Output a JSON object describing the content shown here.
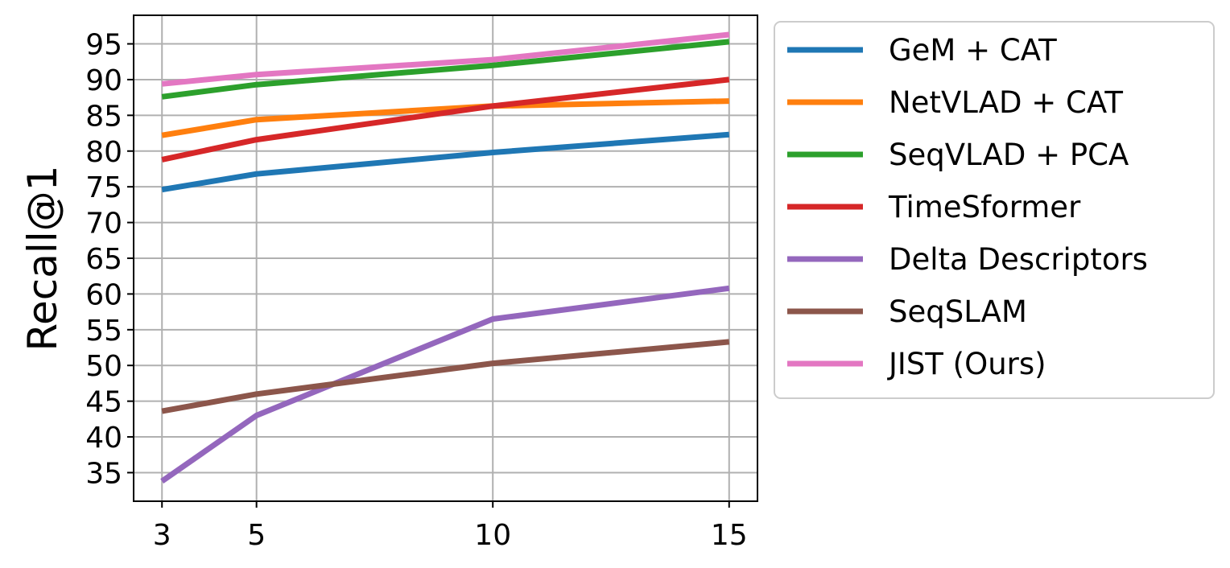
{
  "chart_data": {
    "type": "line",
    "title": "",
    "xlabel": "",
    "ylabel": "Recall@1",
    "x": [
      3,
      5,
      10,
      15
    ],
    "xticks": [
      3,
      5,
      10,
      15
    ],
    "yticks": [
      35,
      40,
      45,
      50,
      55,
      60,
      65,
      70,
      75,
      80,
      85,
      90,
      95
    ],
    "xlim": [
      2.4,
      15.6
    ],
    "ylim": [
      31,
      99
    ],
    "grid": true,
    "legend_position": "outside-right-top",
    "series": [
      {
        "name": "GeM + CAT",
        "color": "#1f77b4",
        "values": [
          74.6,
          76.8,
          79.8,
          82.3
        ]
      },
      {
        "name": "NetVLAD + CAT",
        "color": "#ff7f0e",
        "values": [
          82.2,
          84.4,
          86.3,
          87.0
        ]
      },
      {
        "name": "SeqVLAD + PCA",
        "color": "#2ca02c",
        "values": [
          87.6,
          89.3,
          92.0,
          95.3
        ]
      },
      {
        "name": "TimeSformer",
        "color": "#d62728",
        "values": [
          78.8,
          81.6,
          86.3,
          90.0
        ]
      },
      {
        "name": "Delta Descriptors",
        "color": "#9467bd",
        "values": [
          33.8,
          43.0,
          56.5,
          60.8
        ]
      },
      {
        "name": "SeqSLAM",
        "color": "#8c564b",
        "values": [
          43.6,
          46.0,
          50.3,
          53.3
        ]
      },
      {
        "name": "JIST (Ours)",
        "color": "#e377c2",
        "values": [
          89.4,
          90.7,
          92.8,
          96.3
        ]
      }
    ]
  }
}
